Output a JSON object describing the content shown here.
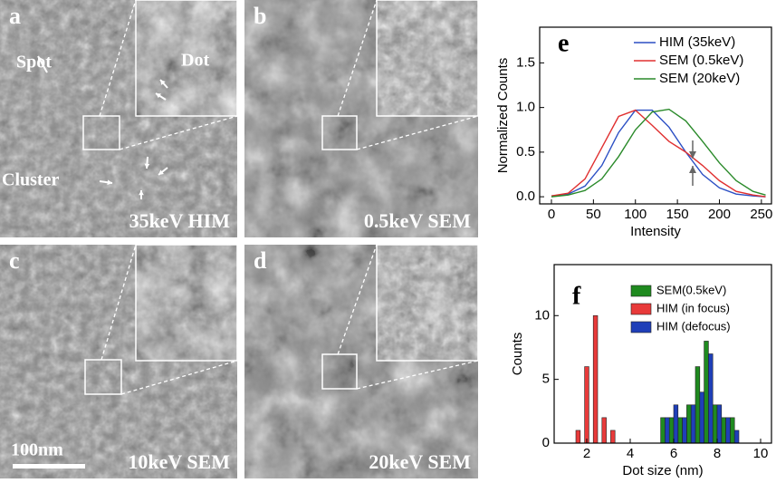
{
  "image_panels": [
    {
      "letter": "a",
      "caption": "35keV HIM",
      "annotations": [
        "Spot",
        "Dot",
        "Cluster"
      ]
    },
    {
      "letter": "b",
      "caption": "0.5keV SEM"
    },
    {
      "letter": "c",
      "caption": "10keV SEM"
    },
    {
      "letter": "d",
      "caption": "20keV SEM"
    }
  ],
  "scale_bar": "100nm",
  "chart_data": [
    {
      "type": "line",
      "panel_label": "e",
      "x_label": "Intensity",
      "y_label": "Normalized Counts",
      "x": [
        0,
        20,
        40,
        60,
        80,
        100,
        120,
        140,
        160,
        180,
        200,
        220,
        240,
        255
      ],
      "series": [
        {
          "name": "HIM (35keV)",
          "color": "#2b4fc4",
          "values": [
            0.01,
            0.03,
            0.12,
            0.35,
            0.72,
            0.97,
            0.97,
            0.78,
            0.5,
            0.25,
            0.1,
            0.03,
            0.01,
            0.0
          ]
        },
        {
          "name": "SEM (0.5keV)",
          "color": "#e03030",
          "values": [
            0.01,
            0.04,
            0.2,
            0.55,
            0.9,
            0.97,
            0.8,
            0.62,
            0.5,
            0.35,
            0.18,
            0.06,
            0.02,
            0.0
          ]
        },
        {
          "name": "SEM (20keV)",
          "color": "#2a8a2a",
          "values": [
            0.0,
            0.02,
            0.07,
            0.2,
            0.45,
            0.75,
            0.95,
            0.98,
            0.85,
            0.62,
            0.38,
            0.18,
            0.06,
            0.02
          ]
        }
      ],
      "xlim": [
        -14,
        262
      ],
      "ylim": [
        -0.08,
        1.9
      ],
      "xticks": [
        0,
        50,
        100,
        150,
        200,
        250
      ],
      "yticks": [
        {
          "value": 0,
          "label": "0.0"
        },
        {
          "value": 0.5,
          "label": "0.5"
        },
        {
          "value": 1,
          "label": "1.0"
        },
        {
          "value": 1.5,
          "label": "1.5"
        }
      ]
    },
    {
      "type": "histogram",
      "panel_label": "f",
      "x_label": "Dot size (nm)",
      "y_label": "Counts",
      "series": [
        {
          "name": "SEM(0.5keV)",
          "color": "#1f8a1f",
          "bins": [
            5.4,
            5.6,
            5.8,
            6.0,
            6.2,
            6.4,
            6.6,
            6.8,
            7.0,
            7.2,
            7.4,
            7.6,
            7.8,
            8.0,
            8.2,
            8.4,
            8.6,
            8.8
          ],
          "values": [
            2,
            0,
            2,
            0,
            2,
            0,
            3,
            0,
            6,
            0,
            8,
            0,
            3,
            0,
            2,
            0,
            2
          ]
        },
        {
          "name": "HIM (in focus)",
          "color": "#e83a3a",
          "bins": [
            1.5,
            1.7,
            1.9,
            2.1,
            2.3,
            2.5,
            2.7,
            2.9,
            3.1,
            3.3
          ],
          "values": [
            1,
            0,
            6,
            0,
            10,
            0,
            2,
            0,
            1
          ]
        },
        {
          "name": "HIM (defocus)",
          "color": "#1f3fb8",
          "bins": [
            5.6,
            5.8,
            6.0,
            6.2,
            6.4,
            6.6,
            6.8,
            7.0,
            7.2,
            7.4,
            7.6,
            7.8,
            8.0,
            8.2,
            8.4,
            8.6,
            8.8,
            9.0
          ],
          "values": [
            2,
            0,
            3,
            0,
            2,
            0,
            3,
            0,
            4,
            0,
            7,
            0,
            3,
            0,
            2,
            0,
            1
          ]
        }
      ],
      "xlim": [
        0.5,
        10.5
      ],
      "ylim": [
        0,
        14
      ],
      "xticks": [
        2,
        4,
        6,
        8,
        10
      ],
      "yticks": [
        0,
        5,
        10
      ]
    }
  ]
}
